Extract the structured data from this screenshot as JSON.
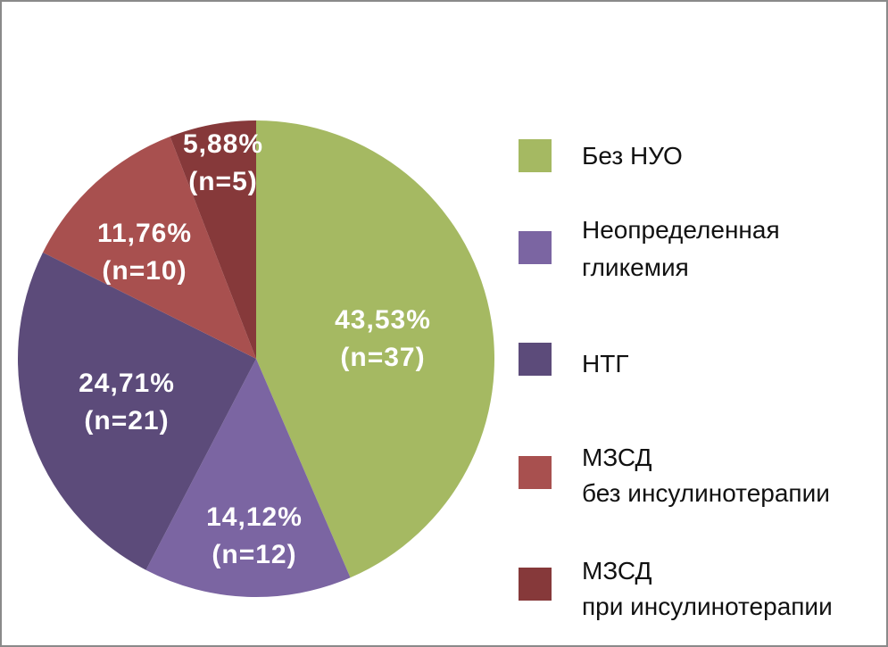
{
  "chart_data": {
    "type": "pie",
    "title": "",
    "start": "top",
    "direction": "clockwise",
    "legend_position": "right",
    "slices": [
      {
        "name": "Без НУО",
        "legend_lines": [
          "Без НУО"
        ],
        "percent": 43.53,
        "n": 37,
        "label_pct": "43,53%",
        "label_n": "(n=37)",
        "color": "#a5b962"
      },
      {
        "name": "Неопределенная гликемия",
        "legend_lines": [
          "Неопределенная",
          "гликемия"
        ],
        "percent": 14.12,
        "n": 12,
        "label_pct": "14,12%",
        "label_n": "(n=12)",
        "color": "#7b65a2"
      },
      {
        "name": "НТГ",
        "legend_lines": [
          "НТГ"
        ],
        "percent": 24.71,
        "n": 21,
        "label_pct": "24,71%",
        "label_n": "(n=21)",
        "color": "#5c4b7a"
      },
      {
        "name": "МЗСД без инсулинотерапии",
        "legend_lines": [
          "МЗСД",
          "без инсулинотерапии"
        ],
        "percent": 11.76,
        "n": 10,
        "label_pct": "11,76%",
        "label_n": "(n=10)",
        "color": "#a8504f"
      },
      {
        "name": "МЗСД при инсулинотерапии",
        "legend_lines": [
          "МЗСД",
          "при инсулинотерапии"
        ],
        "percent": 5.88,
        "n": 5,
        "label_pct": "5,88%",
        "label_n": "(n=5)",
        "color": "#86393a"
      }
    ]
  }
}
